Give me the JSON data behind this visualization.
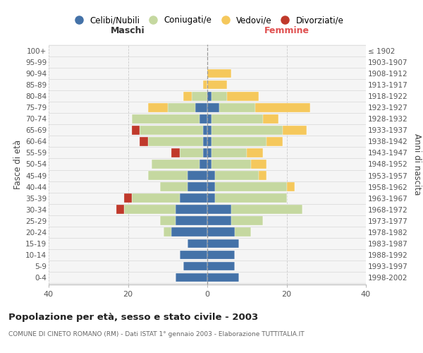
{
  "age_groups": [
    "0-4",
    "5-9",
    "10-14",
    "15-19",
    "20-24",
    "25-29",
    "30-34",
    "35-39",
    "40-44",
    "45-49",
    "50-54",
    "55-59",
    "60-64",
    "65-69",
    "70-74",
    "75-79",
    "80-84",
    "85-89",
    "90-94",
    "95-99",
    "100+"
  ],
  "birth_years": [
    "1998-2002",
    "1993-1997",
    "1988-1992",
    "1983-1987",
    "1978-1982",
    "1973-1977",
    "1968-1972",
    "1963-1967",
    "1958-1962",
    "1953-1957",
    "1948-1952",
    "1943-1947",
    "1938-1942",
    "1933-1937",
    "1928-1932",
    "1923-1927",
    "1918-1922",
    "1913-1917",
    "1908-1912",
    "1903-1907",
    "≤ 1902"
  ],
  "maschi": {
    "celibi": [
      8,
      6,
      7,
      5,
      9,
      8,
      8,
      7,
      5,
      5,
      2,
      1,
      1,
      1,
      2,
      3,
      0,
      0,
      0,
      0,
      0
    ],
    "coniugati": [
      0,
      0,
      0,
      0,
      2,
      4,
      13,
      12,
      7,
      10,
      12,
      6,
      14,
      16,
      17,
      7,
      4,
      0,
      0,
      0,
      0
    ],
    "vedovi": [
      0,
      0,
      0,
      0,
      0,
      0,
      0,
      0,
      0,
      0,
      0,
      0,
      0,
      0,
      0,
      5,
      2,
      1,
      0,
      0,
      0
    ],
    "divorziati": [
      0,
      0,
      0,
      0,
      0,
      0,
      2,
      2,
      0,
      0,
      0,
      2,
      2,
      2,
      0,
      0,
      0,
      0,
      0,
      0,
      0
    ]
  },
  "femmine": {
    "nubili": [
      8,
      7,
      7,
      8,
      7,
      6,
      6,
      2,
      2,
      2,
      1,
      1,
      1,
      1,
      1,
      3,
      1,
      0,
      0,
      0,
      0
    ],
    "coniugate": [
      0,
      0,
      0,
      0,
      4,
      8,
      18,
      18,
      18,
      11,
      10,
      9,
      14,
      18,
      13,
      9,
      4,
      0,
      0,
      0,
      0
    ],
    "vedove": [
      0,
      0,
      0,
      0,
      0,
      0,
      0,
      0,
      2,
      2,
      4,
      4,
      4,
      6,
      4,
      14,
      8,
      5,
      6,
      0,
      0
    ],
    "divorziate": [
      0,
      0,
      0,
      0,
      0,
      0,
      0,
      0,
      0,
      0,
      0,
      0,
      0,
      0,
      0,
      0,
      0,
      0,
      0,
      0,
      0
    ]
  },
  "colors": {
    "celibi_nubili": "#4472a8",
    "coniugati": "#c5d8a0",
    "vedovi": "#f5c85c",
    "divorziati": "#c0392b"
  },
  "xlim": 40,
  "title": "Popolazione per età, sesso e stato civile - 2003",
  "subtitle": "COMUNE DI CINETO ROMANO (RM) - Dati ISTAT 1° gennaio 2003 - Elaborazione TUTTITALIA.IT",
  "ylabel_left": "Fasce di età",
  "ylabel_right": "Anni di nascita",
  "xlabel_maschi": "Maschi",
  "xlabel_femmine": "Femmine"
}
